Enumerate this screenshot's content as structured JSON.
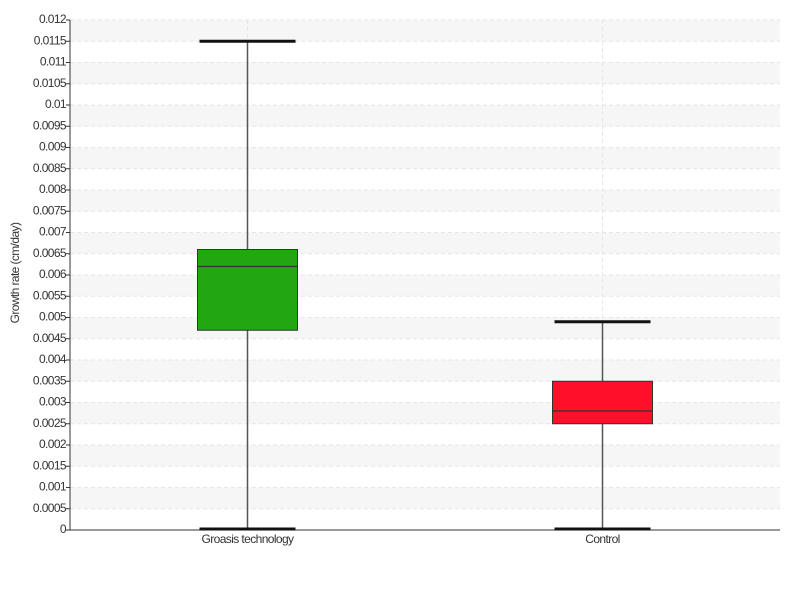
{
  "chart_data": {
    "type": "box",
    "y_label": "Growth rate (cm/day)",
    "categories": [
      "Groasis technology",
      "Control"
    ],
    "colors": [
      "#22a712",
      "#ff0f2a"
    ],
    "whisker_low": [
      0,
      0
    ],
    "q1": [
      0.0047,
      0.0025
    ],
    "median": [
      0.0062,
      0.0028
    ],
    "q3": [
      0.0066,
      0.0035
    ],
    "whisker_high": [
      0.0115,
      0.0049
    ],
    "ylim": [
      0,
      0.012
    ],
    "yticks": [
      0,
      0.0005,
      0.001,
      0.0015,
      0.002,
      0.0025,
      0.003,
      0.0035,
      0.004,
      0.0045,
      0.005,
      0.0055,
      0.006,
      0.0065,
      0.007,
      0.0075,
      0.008,
      0.0085,
      0.009,
      0.0095,
      0.01,
      0.0105,
      0.011,
      0.0115,
      0.012
    ],
    "grid": true
  }
}
